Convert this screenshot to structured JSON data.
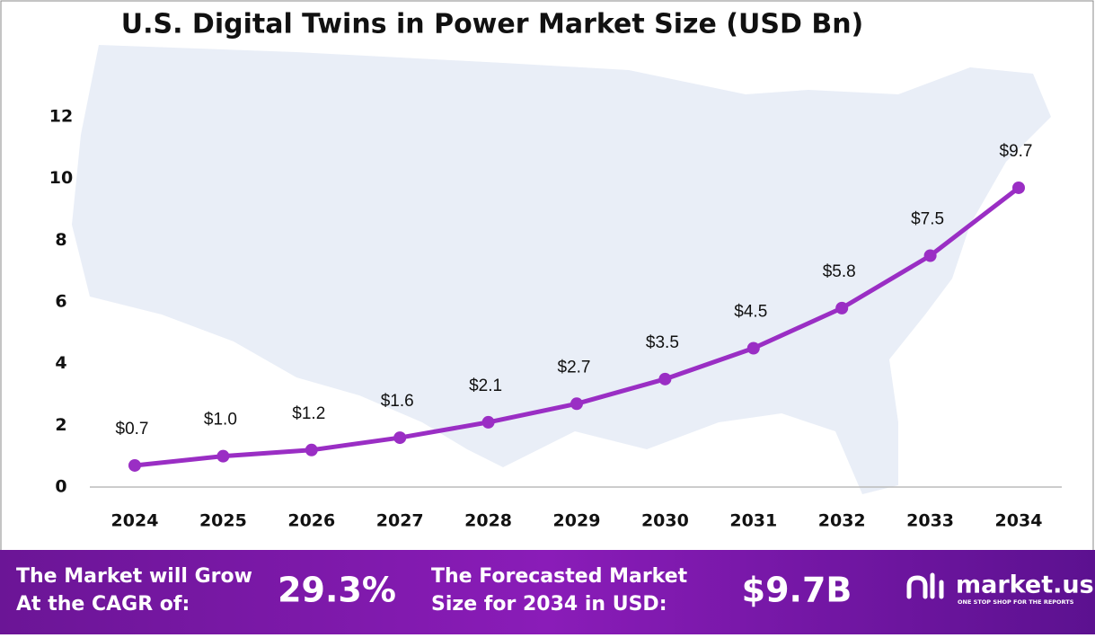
{
  "chart_data": {
    "type": "line",
    "title": "U.S. Digital Twins in Power Market Size (USD Bn)",
    "categories": [
      "2024",
      "2025",
      "2026",
      "2027",
      "2028",
      "2029",
      "2030",
      "2031",
      "2032",
      "2033",
      "2034"
    ],
    "series": [
      {
        "name": "Market Size",
        "color": "#9a2ec4",
        "values": [
          0.7,
          1.0,
          1.2,
          1.6,
          2.1,
          2.7,
          3.5,
          4.5,
          5.8,
          7.5,
          9.7
        ],
        "value_labels": [
          "$0.7",
          "$1.0",
          "$1.2",
          "$1.6",
          "$2.1",
          "$2.7",
          "$3.5",
          "$4.5",
          "$5.8",
          "$7.5",
          "$9.7"
        ]
      }
    ],
    "ylim": [
      0,
      12
    ],
    "yticks": [
      0,
      2,
      4,
      6,
      8,
      10,
      12
    ],
    "grid": false
  },
  "footer": {
    "cagr_label": [
      "The Market will Grow",
      "At the CAGR of:"
    ],
    "cagr_value": "29.3%",
    "forecast_label": [
      "The Forecasted Market",
      "Size for 2034 in USD:"
    ],
    "forecast_value": "$9.7B",
    "brand": "market.us",
    "tagline": "ONE STOP SHOP FOR THE REPORTS"
  }
}
